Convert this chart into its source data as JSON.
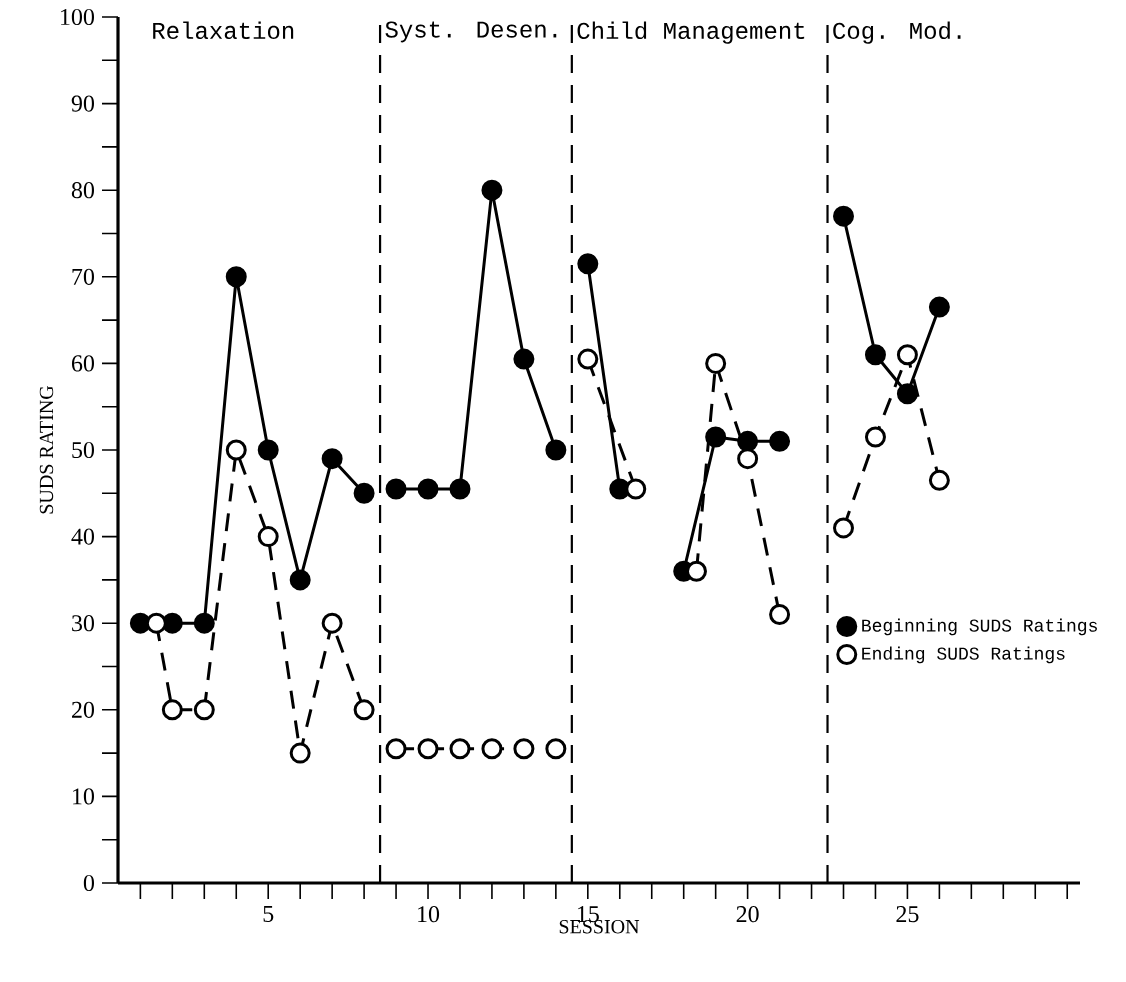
{
  "chart_data": {
    "type": "line",
    "xlabel": "SESSION",
    "ylabel": "SUDS RATING",
    "xlim": [
      0.3,
      30.4
    ],
    "ylim": [
      0,
      100
    ],
    "xticks": [
      {
        "value": 1,
        "label": null
      },
      {
        "value": 2,
        "label": null
      },
      {
        "value": 3,
        "label": null
      },
      {
        "value": 4,
        "label": null
      },
      5,
      {
        "value": 6,
        "label": null
      },
      {
        "value": 7,
        "label": null
      },
      {
        "value": 8,
        "label": null
      },
      {
        "value": 9,
        "label": null
      },
      10,
      {
        "value": 11,
        "label": null
      },
      {
        "value": 12,
        "label": null
      },
      {
        "value": 13,
        "label": null
      },
      {
        "value": 14,
        "label": null
      },
      15,
      {
        "value": 16,
        "label": null
      },
      {
        "value": 17,
        "label": null
      },
      {
        "value": 18,
        "label": null
      },
      {
        "value": 19,
        "label": null
      },
      20,
      {
        "value": 21,
        "label": null
      },
      {
        "value": 22,
        "label": null
      },
      {
        "value": 23,
        "label": null
      },
      {
        "value": 24,
        "label": null
      },
      25,
      {
        "value": 26,
        "label": null
      },
      {
        "value": 27,
        "label": null
      },
      {
        "value": 28,
        "label": null
      },
      {
        "value": 29,
        "label": null
      },
      {
        "value": 30,
        "label": null
      }
    ],
    "yticks": [
      0,
      {
        "value": 5,
        "label": null
      },
      10,
      {
        "value": 15,
        "label": null
      },
      20,
      {
        "value": 25,
        "label": null
      },
      30,
      {
        "value": 35,
        "label": null
      },
      40,
      {
        "value": 45,
        "label": null
      },
      50,
      {
        "value": 55,
        "label": null
      },
      60,
      {
        "value": 65,
        "label": null
      },
      70,
      {
        "value": 75,
        "label": null
      },
      80,
      {
        "value": 85,
        "label": null
      },
      90,
      {
        "value": 95,
        "label": null
      },
      100
    ],
    "marker": "circle",
    "legend": "right",
    "grid": false,
    "series": [
      {
        "name": "Beginning SUDS Ratings",
        "color": "#000000",
        "line_style": "solid",
        "x": [
          1,
          2,
          3,
          4,
          5,
          6,
          7,
          8,
          8.5,
          9,
          10,
          11,
          12,
          13,
          14,
          14.5,
          15,
          16,
          17,
          18,
          19,
          20,
          21,
          22,
          23,
          24,
          25,
          26
        ],
        "values": [
          30,
          30,
          30,
          70,
          50,
          35,
          49,
          45,
          null,
          45.5,
          45.5,
          45.5,
          80,
          60.5,
          50,
          null,
          71.5,
          45.5,
          null,
          36,
          51.5,
          51,
          51,
          null,
          77,
          61,
          56.5,
          66.5
        ]
      },
      {
        "name": "Ending SUDS Ratings",
        "color": "#000000",
        "line_style": "dashed",
        "x": [
          1.5,
          2,
          3,
          4,
          5,
          6,
          7,
          8,
          8.5,
          9,
          10,
          11,
          12,
          13,
          14,
          14.5,
          15,
          16.5,
          17,
          18.4,
          19,
          20,
          21,
          22,
          23,
          24,
          25,
          26
        ],
        "values": [
          30,
          20,
          20,
          50,
          40,
          15,
          30,
          20,
          null,
          15.5,
          15.5,
          15.5,
          15.5,
          15.5,
          15.5,
          null,
          60.5,
          45.5,
          null,
          36,
          60,
          49,
          31,
          null,
          41,
          51.5,
          61,
          46.5
        ]
      }
    ],
    "ref_lines": [
      {
        "axis": "x",
        "value": 8.5,
        "label": "Syst. Desen.",
        "line_style": "dashed",
        "color": "#000000"
      },
      {
        "axis": "x",
        "value": 14.5,
        "label": "Child Management",
        "line_style": "dashed",
        "color": "#000000"
      },
      {
        "axis": "x",
        "value": 22.5,
        "label": "Cog. Mod.",
        "line_style": "dashed",
        "color": "#000000"
      }
    ],
    "annotations": [
      "Relaxation"
    ]
  }
}
